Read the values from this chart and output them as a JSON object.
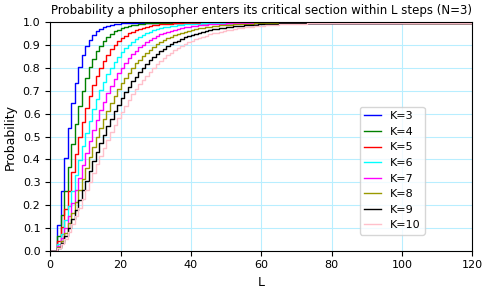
{
  "title": "Probability a philosopher enters its critical section within L steps (N=3)",
  "xlabel": "L",
  "ylabel": "Probability",
  "N": 3,
  "K_values": [
    3,
    4,
    5,
    6,
    7,
    8,
    9,
    10
  ],
  "colors": [
    "blue",
    "green",
    "red",
    "cyan",
    "magenta",
    "#999900",
    "black",
    "pink"
  ],
  "legend_labels": [
    "K=3",
    "K=4",
    "K=5",
    "K=6",
    "K=7",
    "K=8",
    "K=9",
    "K=10"
  ],
  "xlim": [
    0,
    120
  ],
  "ylim": [
    0,
    1
  ],
  "xticks": [
    0,
    20,
    40,
    60,
    80,
    100,
    120
  ],
  "yticks": [
    0.0,
    0.1,
    0.2,
    0.3,
    0.4,
    0.5,
    0.6,
    0.7,
    0.8,
    0.9,
    1.0
  ],
  "grid_color": "#b8eeff",
  "figsize": [
    4.87,
    2.93
  ],
  "dpi": 100,
  "lw": 1.0,
  "title_fontsize": 8.5,
  "label_fontsize": 9,
  "tick_fontsize": 8,
  "legend_fontsize": 8
}
